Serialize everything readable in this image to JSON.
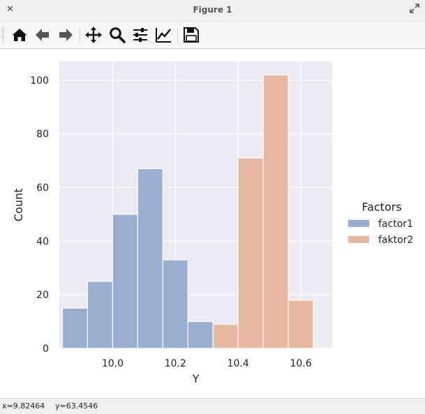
{
  "window": {
    "title": "Figure 1",
    "close_glyph": "✕"
  },
  "toolbar": {
    "buttons": [
      {
        "name": "home-icon",
        "tooltip": "Home"
      },
      {
        "name": "back-arrow-icon",
        "tooltip": "Back"
      },
      {
        "name": "forward-arrow-icon",
        "tooltip": "Forward"
      },
      {
        "name": "pan-icon",
        "tooltip": "Pan"
      },
      {
        "name": "zoom-icon",
        "tooltip": "Zoom"
      },
      {
        "name": "subplots-icon",
        "tooltip": "Configure subplots"
      },
      {
        "name": "axes-edit-icon",
        "tooltip": "Edit axis"
      },
      {
        "name": "save-icon",
        "tooltip": "Save"
      }
    ]
  },
  "status": {
    "x": "x=9.82464",
    "y": "y=63.4546"
  },
  "colors": {
    "factor1": "#9aaed1",
    "faktor2": "#e7b79f",
    "axes_bg": "#eaeaf2",
    "grid": "#ffffff"
  },
  "chart_data": {
    "type": "histogram",
    "xlabel": "Y",
    "ylabel": "Count",
    "xlim": [
      9.83,
      10.7
    ],
    "ylim": [
      0,
      107
    ],
    "xticks": [
      10.0,
      10.2,
      10.4,
      10.6
    ],
    "xtick_labels": [
      "10.0",
      "10.2",
      "10.4",
      "10.6"
    ],
    "yticks": [
      0,
      20,
      40,
      60,
      80,
      100
    ],
    "ytick_labels": [
      "0",
      "20",
      "40",
      "60",
      "80",
      "100"
    ],
    "grid": true,
    "legend": {
      "title": "Factors",
      "placement": "right",
      "entries": [
        "factor1",
        "faktor2"
      ]
    },
    "series": [
      {
        "name": "factor1",
        "bins": [
          {
            "x0": 9.84,
            "x1": 9.92,
            "count": 15
          },
          {
            "x0": 9.92,
            "x1": 10.0,
            "count": 25
          },
          {
            "x0": 10.0,
            "x1": 10.08,
            "count": 50
          },
          {
            "x0": 10.08,
            "x1": 10.16,
            "count": 67
          },
          {
            "x0": 10.16,
            "x1": 10.24,
            "count": 33
          },
          {
            "x0": 10.24,
            "x1": 10.32,
            "count": 10
          }
        ]
      },
      {
        "name": "faktor2",
        "bins": [
          {
            "x0": 10.32,
            "x1": 10.4,
            "count": 9
          },
          {
            "x0": 10.4,
            "x1": 10.48,
            "count": 71
          },
          {
            "x0": 10.48,
            "x1": 10.56,
            "count": 102
          },
          {
            "x0": 10.56,
            "x1": 10.64,
            "count": 18
          }
        ]
      }
    ]
  }
}
